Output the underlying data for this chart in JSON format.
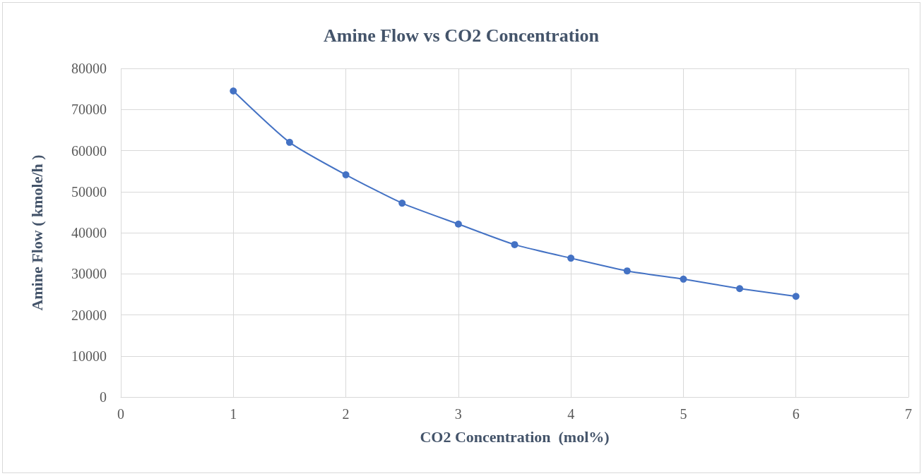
{
  "chart_data": {
    "type": "scatter",
    "title": "Amine Flow vs CO2 Concentration",
    "xlabel": "CO2 Concentration  (mol%)",
    "ylabel": "Amine Flow ( kmole/h )",
    "x": [
      1,
      1.5,
      2,
      2.5,
      3,
      3.5,
      4,
      4.5,
      5,
      5.5,
      6
    ],
    "series": [
      {
        "type": "line",
        "color": "#4472c4",
        "values": [
          74500,
          62000,
          54100,
          47200,
          42100,
          37100,
          33800,
          30700,
          28700,
          26400,
          24500
        ]
      }
    ],
    "xlim": [
      0,
      7
    ],
    "xticks": [
      0,
      1,
      2,
      3,
      4,
      5,
      6,
      7
    ],
    "ylim": [
      0,
      80000
    ],
    "yticks": [
      0,
      10000,
      20000,
      30000,
      40000,
      50000,
      60000,
      70000,
      80000
    ],
    "grid": true,
    "marker": "circle",
    "line_style": "solid"
  }
}
